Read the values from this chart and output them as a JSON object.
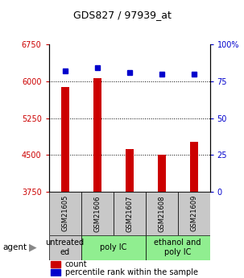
{
  "title": "GDS827 / 97939_at",
  "samples": [
    "GSM21605",
    "GSM21606",
    "GSM21607",
    "GSM21608",
    "GSM21609"
  ],
  "counts": [
    5880,
    6070,
    4620,
    4510,
    4760
  ],
  "percentiles": [
    82,
    84,
    81,
    80,
    80
  ],
  "ylim_left": [
    3750,
    6750
  ],
  "ylim_right": [
    0,
    100
  ],
  "yticks_left": [
    3750,
    4500,
    5250,
    6000,
    6750
  ],
  "yticks_right": [
    0,
    25,
    50,
    75,
    100
  ],
  "bar_color": "#cc0000",
  "dot_color": "#0000cc",
  "agent_groups": [
    {
      "label": "untreated\ned",
      "span": [
        0,
        1
      ],
      "color": "#c8c8c8"
    },
    {
      "label": "poly IC",
      "span": [
        1,
        3
      ],
      "color": "#90ee90"
    },
    {
      "label": "ethanol and\npoly IC",
      "span": [
        3,
        5
      ],
      "color": "#90ee90"
    }
  ],
  "left_tick_color": "#cc0000",
  "right_tick_color": "#0000cc",
  "sample_bg_color": "#c8c8c8",
  "bar_width": 0.25,
  "title_fontsize": 9,
  "tick_fontsize": 7,
  "label_fontsize": 6,
  "agent_fontsize": 7,
  "legend_fontsize": 7
}
